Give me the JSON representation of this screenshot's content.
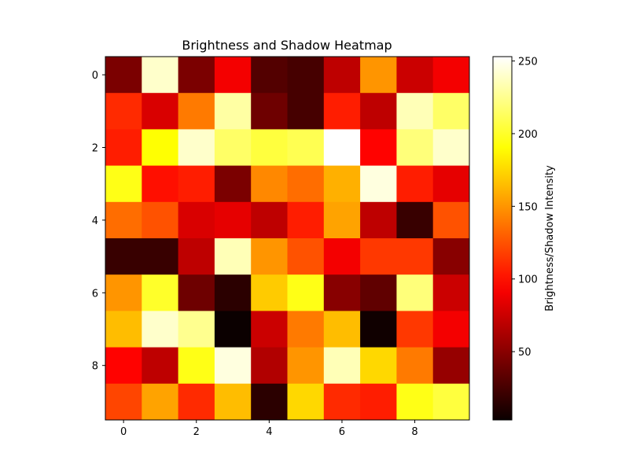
{
  "chart_data": {
    "type": "heatmap",
    "title": "Brightness and Shadow Heatmap",
    "xlabel": "",
    "ylabel": "",
    "x_ticks": [
      "0",
      "2",
      "4",
      "6",
      "8"
    ],
    "y_ticks": [
      "0",
      "2",
      "4",
      "6",
      "8"
    ],
    "colormap": "hot",
    "vmin": 3,
    "vmax": 253,
    "colorbar": {
      "label": "Brightness/Shadow Intensity",
      "ticks": [
        "50",
        "100",
        "150",
        "200",
        "250"
      ]
    },
    "values": [
      [
        45,
        240,
        45,
        90,
        30,
        25,
        70,
        150,
        75,
        90
      ],
      [
        110,
        80,
        140,
        230,
        40,
        25,
        105,
        70,
        235,
        215
      ],
      [
        105,
        190,
        240,
        215,
        205,
        210,
        253,
        95,
        220,
        240
      ],
      [
        195,
        100,
        105,
        45,
        145,
        135,
        160,
        245,
        105,
        85
      ],
      [
        135,
        125,
        80,
        85,
        70,
        105,
        155,
        70,
        20,
        125
      ],
      [
        20,
        20,
        70,
        235,
        150,
        125,
        90,
        115,
        115,
        50
      ],
      [
        150,
        200,
        40,
        15,
        170,
        195,
        50,
        35,
        220,
        75
      ],
      [
        165,
        240,
        225,
        3,
        75,
        140,
        165,
        5,
        115,
        90
      ],
      [
        95,
        70,
        195,
        245,
        65,
        150,
        235,
        175,
        140,
        55
      ],
      [
        120,
        155,
        110,
        165,
        15,
        175,
        110,
        105,
        195,
        205
      ]
    ]
  }
}
